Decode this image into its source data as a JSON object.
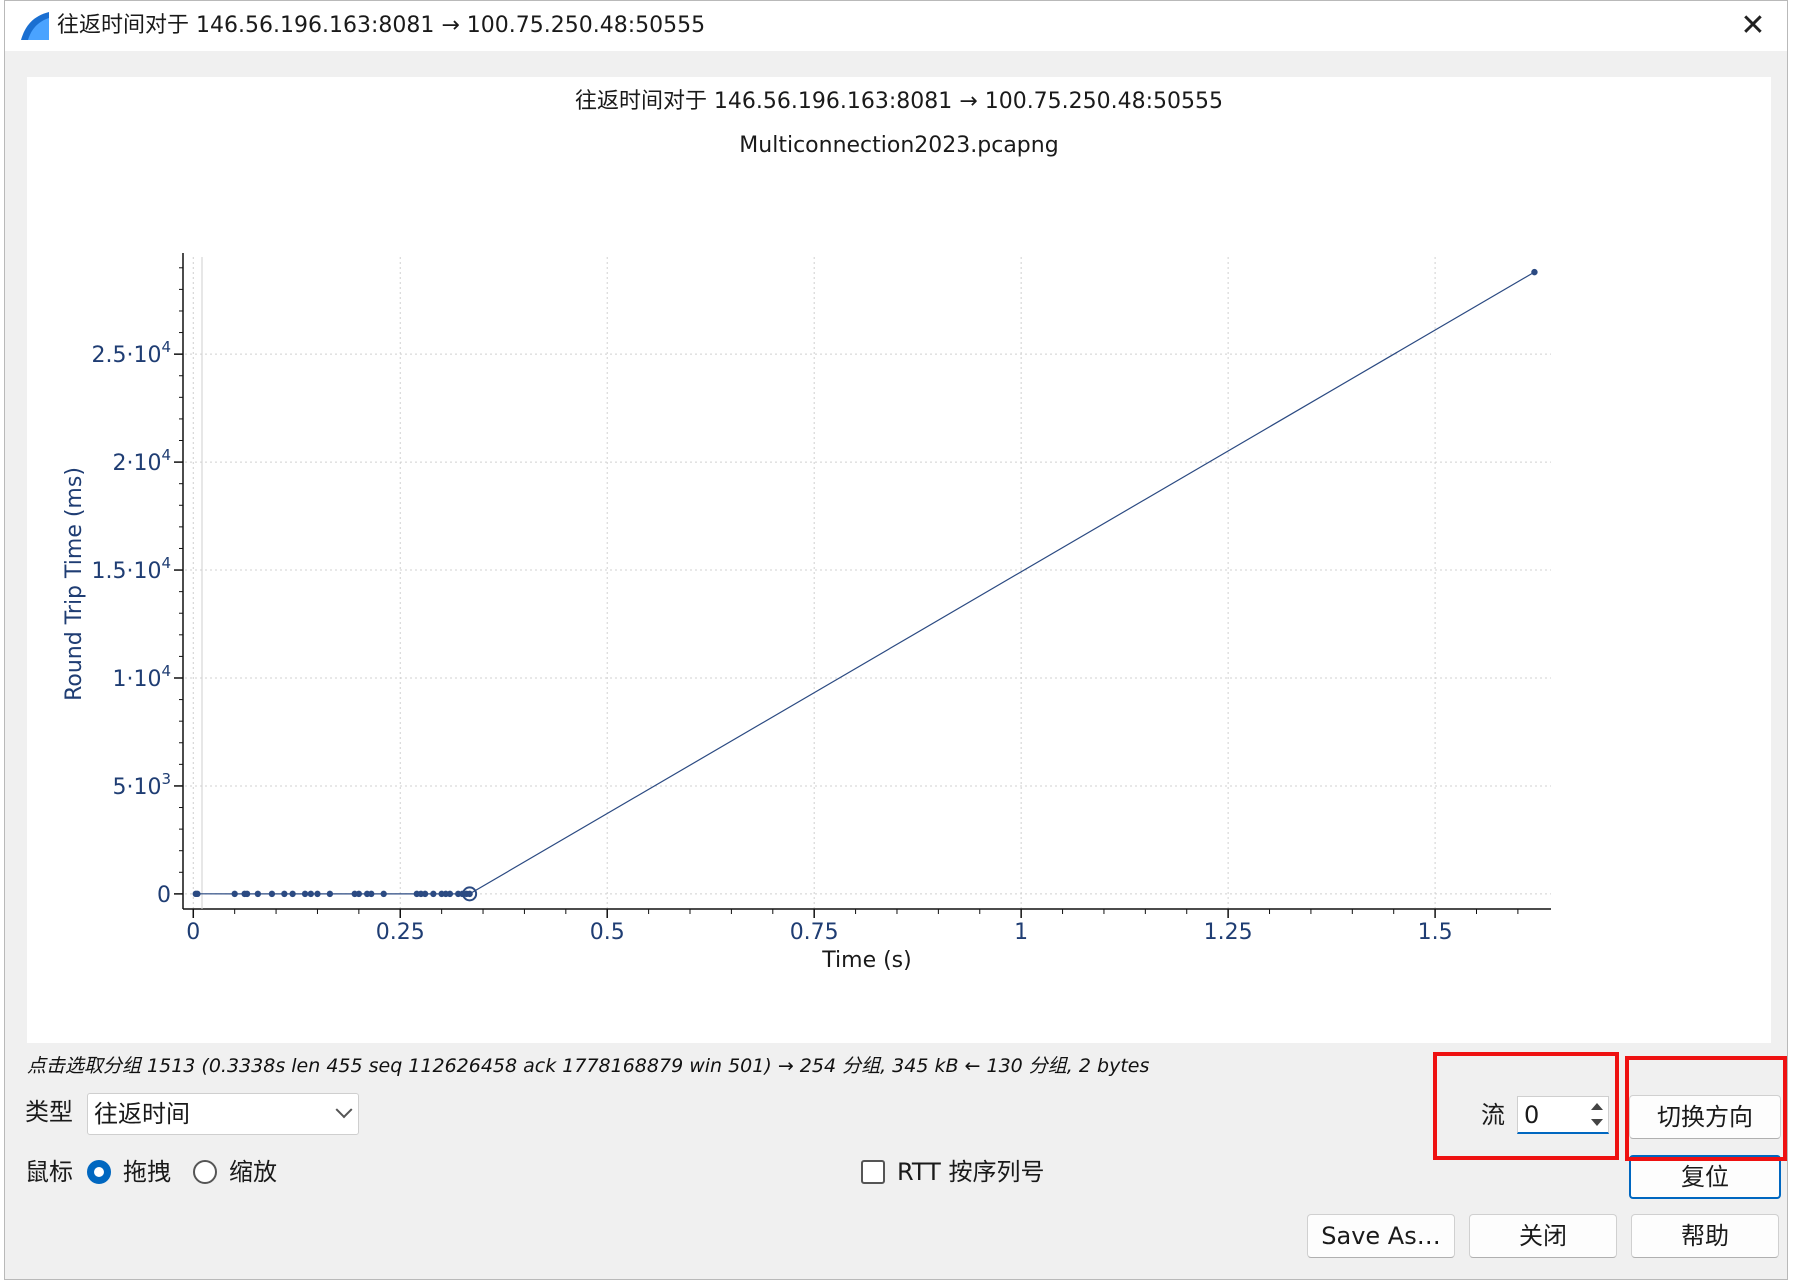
{
  "window": {
    "title": "往返时间对于 146.56.196.163:8081 → 100.75.250.48:50555",
    "close_glyph": "✕"
  },
  "icons": {
    "app": "wireshark-fin-icon",
    "close": "close-icon",
    "chevron": "chevron-down-icon"
  },
  "chart_data": {
    "type": "scatter",
    "title": "往返时间对于 146.56.196.163:8081 → 100.75.250.48:50555",
    "subtitle": "Multiconnection2023.pcapng",
    "xlabel": "Time (s)",
    "ylabel": "Round Trip Time (ms)",
    "xlim": [
      -0.01,
      1.64
    ],
    "ylim": [
      -700,
      29500
    ],
    "x_ticks": [
      0,
      0.25,
      0.5,
      0.75,
      1,
      1.25,
      1.5
    ],
    "x_tick_labels": [
      "0",
      "0.25",
      "0.5",
      "0.75",
      "1",
      "1.25",
      "1.5"
    ],
    "y_ticks": [
      0,
      5000,
      10000,
      15000,
      20000,
      25000
    ],
    "y_tick_labels": [
      {
        "base": "0",
        "exp": ""
      },
      {
        "base": "5·10",
        "exp": "3"
      },
      {
        "base": "1·10",
        "exp": "4"
      },
      {
        "base": "1.5·10",
        "exp": "4"
      },
      {
        "base": "2·10",
        "exp": "4"
      },
      {
        "base": "2.5·10",
        "exp": "4"
      }
    ],
    "grid": true,
    "series": [
      {
        "color": "#2b4a82",
        "x": [
          0.003,
          0.005,
          0.05,
          0.062,
          0.065,
          0.078,
          0.095,
          0.11,
          0.12,
          0.135,
          0.142,
          0.15,
          0.165,
          0.195,
          0.2,
          0.21,
          0.215,
          0.23,
          0.27,
          0.275,
          0.28,
          0.29,
          0.3,
          0.305,
          0.31,
          0.32,
          0.325,
          0.33,
          0.3338,
          1.62
        ],
        "y": [
          2,
          2,
          1,
          1,
          1,
          1,
          1,
          1,
          1,
          1,
          1,
          1,
          1,
          1,
          1,
          1,
          1,
          1,
          1,
          1,
          1,
          1,
          1,
          1,
          1,
          1,
          1,
          1,
          1,
          28800
        ],
        "selected_index": 28
      }
    ]
  },
  "status_text": "点击选取分组 1513 (0.3338s len 455 seq 112626458 ack 1778168879 win 501) → 254 分组, 345 kB ← 130 分组, 2 bytes",
  "controls": {
    "type_label": "类型",
    "type_value": "往返时间",
    "mouse_label": "鼠标",
    "drag_label": "拖拽",
    "zoom_label": "缩放",
    "mouse_mode": "拖拽",
    "rtt_label": "RTT 按序列号",
    "rtt_checked": false,
    "stream_label": "流",
    "stream_value": "0"
  },
  "buttons": {
    "switch_direction": "切换方向",
    "reset": "复位",
    "save_as": "Save As…",
    "close": "关闭",
    "help": "帮助"
  },
  "colors": {
    "accent": "#0067c0",
    "axis_text": "#1f3d73",
    "series": "#2b4a82",
    "highlight": "#ee1111"
  }
}
